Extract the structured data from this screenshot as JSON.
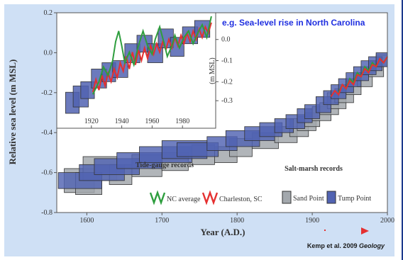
{
  "heading": "e.g. Sea-level rise in North Carolina",
  "credit": {
    "authors": "Kemp et al. 2009",
    "journal": "Geology"
  },
  "colors": {
    "nc": "#2e9e3e",
    "sc": "#e53030",
    "sand": "#a3a8ad",
    "tump": "#5163b2",
    "heading": "#1f2fe0"
  },
  "chart_data": {
    "type": "scatter",
    "xlabel": "Year (A.D.)",
    "ylabel": "Relative sea level (m MSL)",
    "xlim": [
      1560,
      2000
    ],
    "ylim": [
      -0.8,
      0.2
    ],
    "xticks": [
      "1600",
      "1700",
      "1800",
      "1900",
      "2000"
    ],
    "yticks": [
      "-0.8",
      "-0.6",
      "-0.4",
      "-0.2",
      "0.0",
      "0.2"
    ],
    "grid": false,
    "legend": {
      "tide_title": "Tide-gauge records",
      "salt_title": "Salt-marsh records",
      "nc_label": "NC average",
      "sc_label": "Charleston, SC",
      "sand_label": "Sand Point",
      "tump_label": "Tump Point"
    },
    "sand_point": [
      [
        1570,
        1610,
        -0.58,
        -0.7
      ],
      [
        1585,
        1620,
        -0.6,
        -0.71
      ],
      [
        1595,
        1640,
        -0.52,
        -0.64
      ],
      [
        1630,
        1660,
        -0.56,
        -0.66
      ],
      [
        1660,
        1700,
        -0.51,
        -0.62
      ],
      [
        1700,
        1735,
        -0.5,
        -0.59
      ],
      [
        1740,
        1770,
        -0.46,
        -0.56
      ],
      [
        1770,
        1800,
        -0.47,
        -0.55
      ],
      [
        1790,
        1820,
        -0.43,
        -0.52
      ],
      [
        1820,
        1855,
        -0.4,
        -0.48
      ],
      [
        1850,
        1880,
        -0.37,
        -0.45
      ],
      [
        1870,
        1895,
        -0.33,
        -0.42
      ],
      [
        1880,
        1905,
        -0.32,
        -0.39
      ],
      [
        1890,
        1910,
        -0.3,
        -0.37
      ],
      [
        1900,
        1925,
        -0.27,
        -0.34
      ],
      [
        1910,
        1935,
        -0.25,
        -0.31
      ],
      [
        1920,
        1945,
        -0.2,
        -0.28
      ],
      [
        1930,
        1955,
        -0.18,
        -0.25
      ],
      [
        1945,
        1965,
        -0.14,
        -0.21
      ],
      [
        1960,
        1980,
        -0.1,
        -0.17
      ],
      [
        1975,
        1995,
        -0.04,
        -0.12
      ],
      [
        1985,
        2000,
        -0.01,
        -0.07
      ]
    ],
    "tump_point": [
      [
        1562,
        1620,
        -0.6,
        -0.68
      ],
      [
        1590,
        1650,
        -0.56,
        -0.64
      ],
      [
        1610,
        1670,
        -0.53,
        -0.61
      ],
      [
        1640,
        1700,
        -0.5,
        -0.58
      ],
      [
        1670,
        1740,
        -0.47,
        -0.55
      ],
      [
        1700,
        1760,
        -0.44,
        -0.53
      ],
      [
        1720,
        1775,
        -0.45,
        -0.52
      ],
      [
        1760,
        1800,
        -0.42,
        -0.49
      ],
      [
        1785,
        1830,
        -0.39,
        -0.47
      ],
      [
        1810,
        1850,
        -0.37,
        -0.44
      ],
      [
        1830,
        1860,
        -0.35,
        -0.42
      ],
      [
        1850,
        1875,
        -0.33,
        -0.4
      ],
      [
        1865,
        1890,
        -0.31,
        -0.38
      ],
      [
        1880,
        1900,
        -0.28,
        -0.35
      ],
      [
        1890,
        1910,
        -0.26,
        -0.33
      ],
      [
        1905,
        1925,
        -0.22,
        -0.3
      ],
      [
        1915,
        1935,
        -0.19,
        -0.26
      ],
      [
        1925,
        1945,
        -0.16,
        -0.23
      ],
      [
        1935,
        1955,
        -0.13,
        -0.2
      ],
      [
        1945,
        1965,
        -0.1,
        -0.17
      ],
      [
        1955,
        1975,
        -0.07,
        -0.14
      ],
      [
        1965,
        1985,
        -0.04,
        -0.11
      ],
      [
        1975,
        1993,
        -0.02,
        -0.09
      ],
      [
        1985,
        2000,
        0.0,
        -0.07
      ]
    ],
    "nc_average": [
      [
        1935,
        -0.2
      ],
      [
        1940,
        -0.16
      ],
      [
        1945,
        -0.18
      ],
      [
        1950,
        -0.13
      ],
      [
        1955,
        -0.15
      ],
      [
        1960,
        -0.1
      ],
      [
        1965,
        -0.12
      ],
      [
        1970,
        -0.07
      ],
      [
        1975,
        -0.09
      ],
      [
        1980,
        -0.05
      ],
      [
        1985,
        -0.07
      ],
      [
        1990,
        -0.03
      ],
      [
        1995,
        -0.05
      ],
      [
        2000,
        -0.02
      ]
    ],
    "charleston": [
      [
        1925,
        -0.22
      ],
      [
        1930,
        -0.19
      ],
      [
        1935,
        -0.21
      ],
      [
        1940,
        -0.16
      ],
      [
        1945,
        -0.18
      ],
      [
        1950,
        -0.14
      ],
      [
        1955,
        -0.16
      ],
      [
        1960,
        -0.11
      ],
      [
        1965,
        -0.12
      ],
      [
        1970,
        -0.08
      ],
      [
        1975,
        -0.1
      ],
      [
        1980,
        -0.06
      ],
      [
        1985,
        -0.07
      ],
      [
        1990,
        -0.03
      ],
      [
        1995,
        -0.05
      ],
      [
        2000,
        -0.02
      ]
    ],
    "inset": {
      "xlim": [
        1900,
        2000
      ],
      "ylim": [
        -0.27,
        0.2
      ],
      "xticks": [
        "1920",
        "1940",
        "1960",
        "1980"
      ],
      "yticks_left": [
        "-0.2",
        "0.0",
        "0.2"
      ],
      "yticks_right": [
        "0.0",
        "-0.1",
        "-0.2",
        "-0.3"
      ],
      "ylabel_right": "(m MSL)",
      "tump_point": [
        [
          1903,
          1912,
          -0.17,
          -0.27
        ],
        [
          1908,
          1918,
          -0.14,
          -0.24
        ],
        [
          1913,
          1922,
          -0.12,
          -0.2
        ],
        [
          1920,
          1930,
          -0.06,
          -0.15
        ],
        [
          1927,
          1936,
          -0.03,
          -0.12
        ],
        [
          1934,
          1944,
          -0.02,
          -0.1
        ],
        [
          1942,
          1952,
          0.06,
          -0.03
        ],
        [
          1950,
          1960,
          0.1,
          0.02
        ],
        [
          1957,
          1967,
          0.06,
          -0.03
        ],
        [
          1964,
          1974,
          0.13,
          0.04
        ],
        [
          1972,
          1981,
          0.09,
          0.0
        ],
        [
          1980,
          1990,
          0.14,
          0.06
        ],
        [
          1988,
          1998,
          0.17,
          0.09
        ]
      ],
      "nc_average": [
        [
          1921,
          -0.18
        ],
        [
          1925,
          -0.12
        ],
        [
          1928,
          -0.05
        ],
        [
          1931,
          -0.09
        ],
        [
          1934,
          -0.02
        ],
        [
          1936,
          0.07
        ],
        [
          1938,
          0.12
        ],
        [
          1940,
          0.05
        ],
        [
          1942,
          -0.03
        ],
        [
          1945,
          0.02
        ],
        [
          1948,
          -0.04
        ],
        [
          1951,
          0.05
        ],
        [
          1954,
          0.12
        ],
        [
          1957,
          0.05
        ],
        [
          1960,
          0.01
        ],
        [
          1962,
          0.08
        ],
        [
          1965,
          0.14
        ],
        [
          1968,
          0.06
        ],
        [
          1970,
          0.0
        ],
        [
          1973,
          0.05
        ],
        [
          1975,
          0.1
        ],
        [
          1978,
          0.04
        ],
        [
          1981,
          0.09
        ],
        [
          1984,
          0.12
        ],
        [
          1987,
          0.06
        ],
        [
          1990,
          0.11
        ],
        [
          1993,
          0.15
        ],
        [
          1996,
          0.09
        ],
        [
          1999,
          0.19
        ]
      ],
      "charleston": [
        [
          1921,
          -0.17
        ],
        [
          1923,
          -0.11
        ],
        [
          1925,
          -0.16
        ],
        [
          1927,
          -0.09
        ],
        [
          1929,
          -0.14
        ],
        [
          1931,
          -0.08
        ],
        [
          1933,
          -0.12
        ],
        [
          1935,
          -0.06
        ],
        [
          1937,
          -0.1
        ],
        [
          1939,
          -0.03
        ],
        [
          1941,
          -0.07
        ],
        [
          1943,
          0.0
        ],
        [
          1945,
          -0.06
        ],
        [
          1947,
          0.02
        ],
        [
          1949,
          -0.04
        ],
        [
          1951,
          0.03
        ],
        [
          1953,
          -0.02
        ],
        [
          1955,
          0.04
        ],
        [
          1957,
          -0.01
        ],
        [
          1959,
          0.05
        ],
        [
          1961,
          0.01
        ],
        [
          1963,
          0.06
        ],
        [
          1965,
          0.02
        ],
        [
          1967,
          0.07
        ],
        [
          1969,
          0.03
        ],
        [
          1971,
          0.08
        ],
        [
          1973,
          0.04
        ],
        [
          1975,
          0.09
        ],
        [
          1977,
          0.05
        ],
        [
          1979,
          0.1
        ],
        [
          1981,
          0.06
        ],
        [
          1983,
          0.11
        ],
        [
          1985,
          0.07
        ],
        [
          1987,
          0.12
        ],
        [
          1989,
          0.08
        ],
        [
          1991,
          0.13
        ],
        [
          1993,
          0.09
        ],
        [
          1995,
          0.14
        ],
        [
          1997,
          0.11
        ],
        [
          1999,
          0.16
        ]
      ]
    }
  }
}
